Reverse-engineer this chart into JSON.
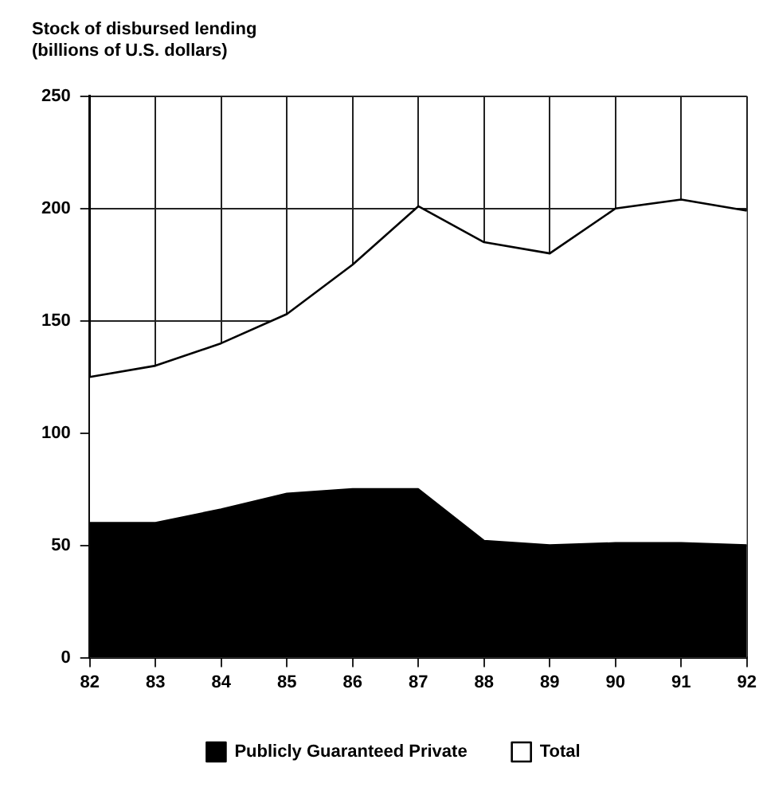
{
  "chart_data": {
    "type": "area",
    "title": "Stock of disbursed lending",
    "subtitle": "(billions of U.S. dollars)",
    "x": [
      82,
      83,
      84,
      85,
      86,
      87,
      88,
      89,
      90,
      91,
      92
    ],
    "series": [
      {
        "name": "Total",
        "color": "#ffffff",
        "values": [
          125,
          130,
          140,
          153,
          175,
          201,
          185,
          180,
          200,
          204,
          199
        ]
      },
      {
        "name": "Publicly Guaranteed Private",
        "color": "#000000",
        "values": [
          60,
          60,
          66,
          73,
          75,
          75,
          52,
          50,
          51,
          51,
          50
        ]
      }
    ],
    "xlim": [
      82,
      92
    ],
    "xticks": [
      82,
      83,
      84,
      85,
      86,
      87,
      88,
      89,
      90,
      91,
      92
    ],
    "ylim": [
      0,
      250
    ],
    "yticks": [
      0,
      50,
      100,
      150,
      200,
      250
    ],
    "grid": true,
    "legend": "bottom"
  }
}
